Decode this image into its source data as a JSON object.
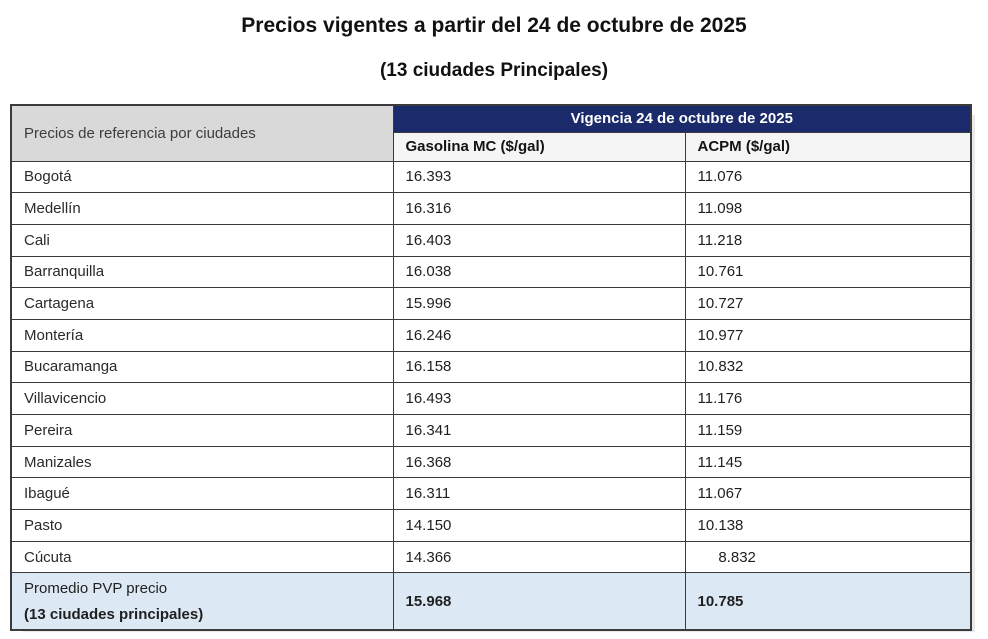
{
  "title": "Precios vigentes a partir del 24 de octubre de 2025",
  "subtitle": "(13 ciudades Principales)",
  "colors": {
    "header_navy": "#1b2a6b",
    "corner_gray": "#d9d9d9",
    "footer_blue": "#dce9f5",
    "border": "#3b3b3b"
  },
  "chart_data": {
    "type": "table",
    "title": "Precios vigentes a partir del 24 de octubre de 2025 (13 ciudades Principales)",
    "columns": [
      "Precios de referencia por ciudades",
      "Gasolina MC ($/gal)",
      "ACPM ($/gal)"
    ],
    "rows": [
      [
        "Bogotá",
        "16.393",
        "11.076"
      ],
      [
        "Medellín",
        "16.316",
        "11.098"
      ],
      [
        "Cali",
        "16.403",
        "11.218"
      ],
      [
        "Barranquilla",
        "16.038",
        "10.761"
      ],
      [
        "Cartagena",
        "15.996",
        "10.727"
      ],
      [
        "Montería",
        "16.246",
        "10.977"
      ],
      [
        "Bucaramanga",
        "16.158",
        "10.832"
      ],
      [
        "Villavicencio",
        "16.493",
        "11.176"
      ],
      [
        "Pereira",
        "16.341",
        "11.159"
      ],
      [
        "Manizales",
        "16.368",
        "11.145"
      ],
      [
        "Ibagué",
        "16.311",
        "11.067"
      ],
      [
        "Pasto",
        "14.150",
        "10.138"
      ],
      [
        "Cúcuta",
        "14.366",
        "8.832"
      ],
      [
        "Promedio PVP precio (13 ciudades principales)",
        "15.968",
        "10.785"
      ]
    ]
  },
  "table": {
    "corner_header": "Precios de referencia por ciudades",
    "vigencia_header": "Vigencia 24 de octubre de 2025",
    "col_gasolina": "Gasolina MC ($/gal)",
    "col_acpm": "ACPM ($/gal)",
    "rows": [
      {
        "city": "Bogotá",
        "gasolina": "16.393",
        "acpm": "11.076"
      },
      {
        "city": "Medellín",
        "gasolina": "16.316",
        "acpm": "11.098"
      },
      {
        "city": "Cali",
        "gasolina": "16.403",
        "acpm": "11.218"
      },
      {
        "city": "Barranquilla",
        "gasolina": "16.038",
        "acpm": "10.761"
      },
      {
        "city": "Cartagena",
        "gasolina": "15.996",
        "acpm": "10.727"
      },
      {
        "city": "Montería",
        "gasolina": "16.246",
        "acpm": "10.977"
      },
      {
        "city": "Bucaramanga",
        "gasolina": "16.158",
        "acpm": "10.832"
      },
      {
        "city": "Villavicencio",
        "gasolina": "16.493",
        "acpm": "11.176"
      },
      {
        "city": "Pereira",
        "gasolina": "16.341",
        "acpm": "11.159"
      },
      {
        "city": "Manizales",
        "gasolina": "16.368",
        "acpm": "11.145"
      },
      {
        "city": "Ibagué",
        "gasolina": "16.311",
        "acpm": "11.067"
      },
      {
        "city": "Pasto",
        "gasolina": "14.150",
        "acpm": "10.138"
      },
      {
        "city": "Cúcuta",
        "gasolina": "14.366",
        "acpm": "     8.832"
      }
    ],
    "footer": {
      "label_line1": "Promedio PVP precio",
      "label_line2": "(13 ciudades principales)",
      "gasolina": "15.968",
      "acpm": "10.785"
    }
  }
}
